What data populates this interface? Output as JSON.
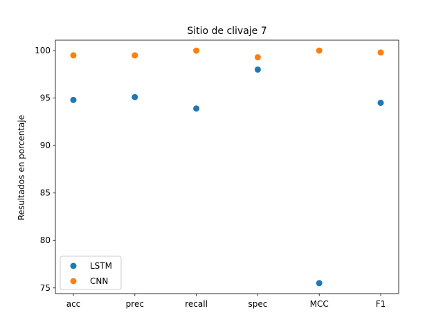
{
  "chart_data": {
    "type": "scatter",
    "title": "Sitio de clivaje 7",
    "xlabel": "",
    "ylabel": "Resultados en porcentaje",
    "categories": [
      "acc",
      "prec",
      "recall",
      "spec",
      "MCC",
      "F1"
    ],
    "ylim": [
      74.4,
      101.1
    ],
    "yticks": [
      75,
      80,
      85,
      90,
      95,
      100
    ],
    "grid": false,
    "legend_position": "bottom-left",
    "series": [
      {
        "name": "LSTM",
        "color": "#1f77b4",
        "values": [
          94.8,
          95.1,
          93.9,
          98.0,
          75.5,
          94.5
        ]
      },
      {
        "name": "CNN",
        "color": "#ff7f0e",
        "values": [
          99.5,
          99.5,
          100.0,
          99.3,
          100.0,
          99.8
        ]
      }
    ]
  }
}
